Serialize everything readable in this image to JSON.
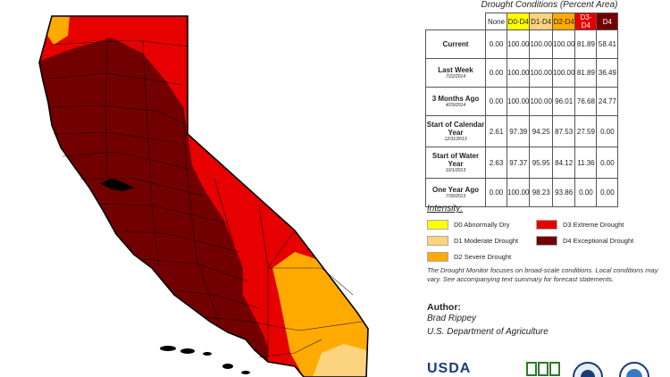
{
  "table": {
    "title": "Drought Conditions (Percent Area)",
    "columns": [
      "None",
      "D0-D4",
      "D1-D4",
      "D2-D4",
      "D3-D4",
      "D4"
    ],
    "header_colors": [
      "#ffffff",
      "#ffff00",
      "#fcd37f",
      "#ffaa00",
      "#e60000",
      "#730000"
    ],
    "rows": [
      {
        "label": "Current",
        "date": "",
        "values": [
          "0.00",
          "100.00",
          "100.00",
          "100.00",
          "81.89",
          "58.41"
        ]
      },
      {
        "label": "Last Week",
        "date": "7/22/2014",
        "values": [
          "0.00",
          "100.00",
          "100.00",
          "100.00",
          "81.89",
          "36.49"
        ]
      },
      {
        "label": "3 Months Ago",
        "date": "4/29/2014",
        "values": [
          "0.00",
          "100.00",
          "100.00",
          "96.01",
          "76.68",
          "24.77"
        ]
      },
      {
        "label": "Start of Calendar Year",
        "date": "12/31/2013",
        "values": [
          "2.61",
          "97.39",
          "94.25",
          "87.53",
          "27.59",
          "0.00"
        ]
      },
      {
        "label": "Start of Water Year",
        "date": "10/1/2013",
        "values": [
          "2.63",
          "97.37",
          "95.95",
          "84.12",
          "11.36",
          "0.00"
        ]
      },
      {
        "label": "One Year Ago",
        "date": "7/30/2013",
        "values": [
          "0.00",
          "100.00",
          "98.23",
          "93.86",
          "0.00",
          "0.00"
        ]
      }
    ]
  },
  "legend": {
    "heading": "Intensity:",
    "items": [
      {
        "label": "D0 Abnormally Dry",
        "color": "#ffff00"
      },
      {
        "label": "D1 Moderate Drought",
        "color": "#fcd37f"
      },
      {
        "label": "D2 Severe Drought",
        "color": "#ffaa00"
      },
      {
        "label": "D3 Extreme Drought",
        "color": "#e60000"
      },
      {
        "label": "D4 Exceptional Drought",
        "color": "#730000"
      }
    ]
  },
  "note": "The Drought Monitor focuses on broad-scale conditions. Local conditions may vary. See accompanying text summary for forecast statements.",
  "author": {
    "heading": "Author:",
    "name": "Brad Rippey",
    "org": "U.S. Department of Agriculture"
  },
  "logos": {
    "usda": "USDA"
  }
}
